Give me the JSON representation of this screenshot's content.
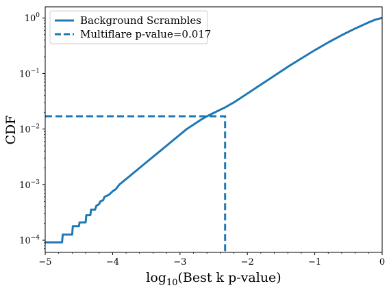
{
  "chart_data": {
    "type": "line",
    "xlabel": "log10(Best k p-value)",
    "xlabel_parts": {
      "base": "log",
      "sub": "10",
      "rest": "(Best k p-value)"
    },
    "ylabel": "CDF",
    "xlim": [
      -5,
      0
    ],
    "ylim_log10": [
      -4.22,
      0.2
    ],
    "y_scale": "log",
    "grid": false,
    "legend_position": "top-left",
    "x_ticks": [
      -5,
      -4,
      -3,
      -2,
      -1,
      0
    ],
    "x_tick_labels": [
      "−5",
      "−4",
      "−3",
      "−2",
      "−1",
      "0"
    ],
    "y_ticks": [
      {
        "value_exp": -4,
        "base": "10",
        "exp": "−4"
      },
      {
        "value_exp": -3,
        "base": "10",
        "exp": "−3"
      },
      {
        "value_exp": -2,
        "base": "10",
        "exp": "−2"
      },
      {
        "value_exp": -1,
        "base": "10",
        "exp": "−1"
      },
      {
        "value_exp": 0,
        "base": "10",
        "exp": "0"
      }
    ],
    "series": [
      {
        "name": "Background Scrambles",
        "style": "solid",
        "color": "#1f77b4",
        "x": [
          -5.0,
          -4.75,
          -4.74,
          -4.6,
          -4.59,
          -4.5,
          -4.49,
          -4.4,
          -4.39,
          -4.33,
          -4.32,
          -4.26,
          -4.24,
          -4.2,
          -4.18,
          -4.14,
          -4.12,
          -4.05,
          -4.0,
          -3.95,
          -3.9,
          -3.85,
          -3.8,
          -3.7,
          -3.6,
          -3.5,
          -3.4,
          -3.3,
          -3.2,
          -3.1,
          -3.0,
          -2.9,
          -2.8,
          -2.7,
          -2.6,
          -2.5,
          -2.4,
          -2.33,
          -2.2,
          -2.0,
          -1.8,
          -1.6,
          -1.4,
          -1.2,
          -1.0,
          -0.8,
          -0.6,
          -0.4,
          -0.2,
          -0.1,
          0.0
        ],
        "y_log10": [
          -4.04,
          -4.04,
          -3.9,
          -3.9,
          -3.75,
          -3.75,
          -3.68,
          -3.68,
          -3.55,
          -3.55,
          -3.45,
          -3.45,
          -3.38,
          -3.35,
          -3.3,
          -3.28,
          -3.22,
          -3.18,
          -3.12,
          -3.08,
          -3.0,
          -2.95,
          -2.9,
          -2.8,
          -2.7,
          -2.6,
          -2.5,
          -2.4,
          -2.3,
          -2.2,
          -2.1,
          -2.0,
          -1.92,
          -1.84,
          -1.77,
          -1.71,
          -1.65,
          -1.61,
          -1.52,
          -1.36,
          -1.2,
          -1.04,
          -0.88,
          -0.73,
          -0.58,
          -0.44,
          -0.31,
          -0.19,
          -0.08,
          -0.03,
          0.0
        ]
      },
      {
        "name": "Multiflare p-value=0.017",
        "style": "dashed",
        "color": "#1f77b4",
        "x": [
          -5.0,
          -2.33,
          -2.33
        ],
        "y": [
          0.017,
          0.017,
          5.75e-05
        ]
      }
    ]
  }
}
